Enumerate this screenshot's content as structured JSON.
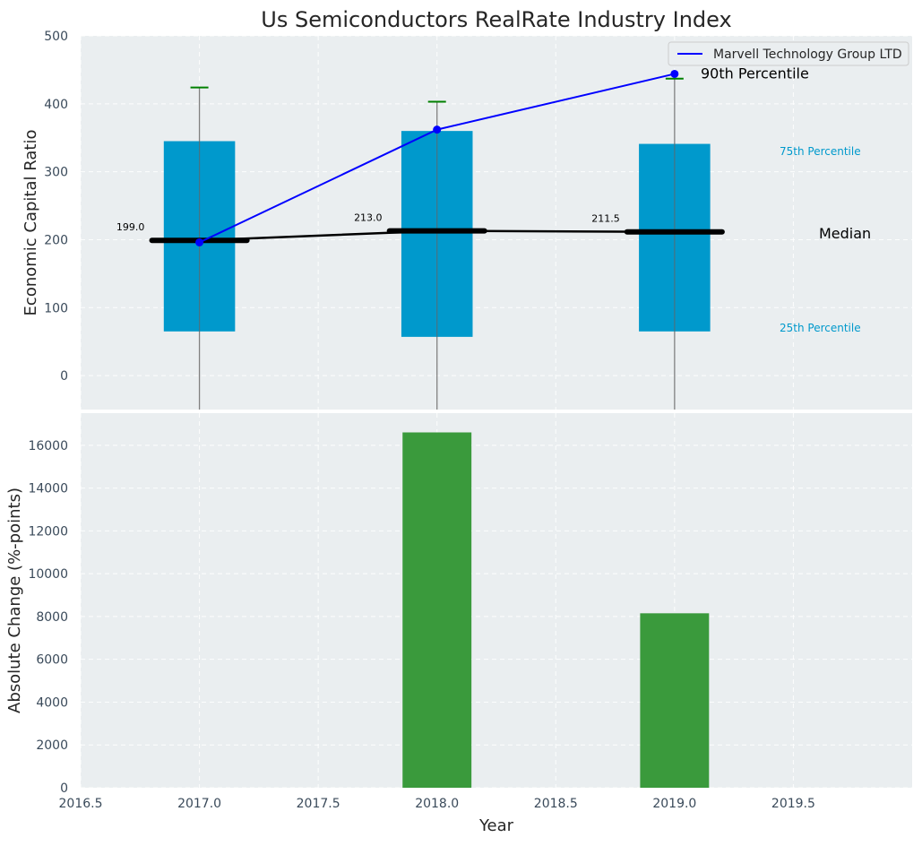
{
  "title": "Us Semiconductors RealRate Industry Index",
  "chart_data": [
    {
      "type": "box",
      "ylabel": "Economic Capital Ratio",
      "ylim": [
        -50,
        500
      ],
      "yticks": [
        "0",
        "100",
        "200",
        "300",
        "400",
        "500"
      ],
      "ytick_values": [
        0,
        100,
        200,
        300,
        400,
        500
      ],
      "years": [
        2017,
        2018,
        2019
      ],
      "boxes": [
        {
          "year": 2017,
          "q1": 65,
          "q3": 345,
          "median": 199.0,
          "median_label": "199.0",
          "p90": 424
        },
        {
          "year": 2018,
          "q1": 57,
          "q3": 360,
          "median": 213.0,
          "median_label": "213.0",
          "p90": 403
        },
        {
          "year": 2019,
          "q1": 65,
          "q3": 341,
          "median": 211.5,
          "median_label": "211.5",
          "p90": 437
        }
      ],
      "series": [
        {
          "name": "Marvell Technology Group LTD",
          "color": "#0000ff",
          "x": [
            2017,
            2018,
            2019
          ],
          "values": [
            196,
            362,
            444
          ]
        }
      ],
      "annotations": {
        "p90": "90th Percentile",
        "p75": "75th Percentile",
        "median": "Median",
        "p25": "25th Percentile"
      },
      "legend": {
        "label": "Marvell Technology Group LTD",
        "position": "top-right"
      },
      "colors": {
        "box": "#0099cc",
        "median": "#000000",
        "whisker_cap": "#008000",
        "series": "#0000ff",
        "background": "#eaeef0"
      }
    },
    {
      "type": "bar",
      "ylabel": "Absolute Change (%-points)",
      "xlabel": "Year",
      "ylim": [
        0,
        17500
      ],
      "yticks": [
        "0",
        "2000",
        "4000",
        "6000",
        "8000",
        "10000",
        "12000",
        "14000",
        "16000"
      ],
      "ytick_values": [
        0,
        2000,
        4000,
        6000,
        8000,
        10000,
        12000,
        14000,
        16000
      ],
      "xlim": [
        2016.5,
        2020.0
      ],
      "xticks": [
        "2016.5",
        "2017.0",
        "2017.5",
        "2018.0",
        "2018.5",
        "2019.0",
        "2019.5"
      ],
      "xtick_values": [
        2016.5,
        2017.0,
        2017.5,
        2018.0,
        2018.5,
        2019.0,
        2019.5
      ],
      "x": [
        2017,
        2018,
        2019
      ],
      "values": [
        0,
        16600,
        8150
      ],
      "colors": {
        "bar": "#3a9a3c"
      }
    }
  ]
}
